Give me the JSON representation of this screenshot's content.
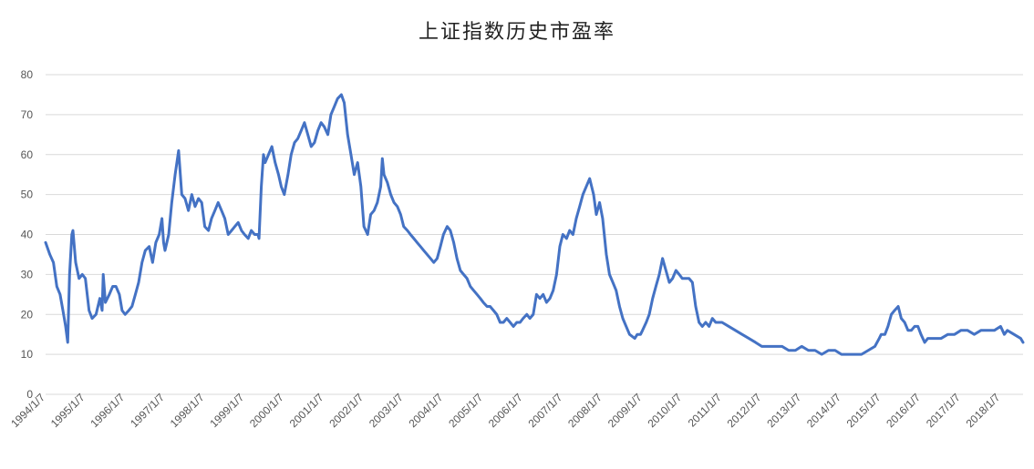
{
  "chart_data": {
    "type": "line",
    "title": "上证指数历史市盈率",
    "xlabel": "",
    "ylabel": "",
    "ylim": [
      0,
      80
    ],
    "yticks": [
      0,
      10,
      20,
      30,
      40,
      50,
      60,
      70,
      80
    ],
    "grid": true,
    "legend": "none",
    "xlim": [
      "1994/1/7",
      "2018/8/1"
    ],
    "x_tick_labels": [
      "1994/1/7",
      "1995/1/7",
      "1996/1/7",
      "1997/1/7",
      "1998/1/7",
      "1999/1/7",
      "2000/1/7",
      "2001/1/7",
      "2002/1/7",
      "2003/1/7",
      "2004/1/7",
      "2005/1/7",
      "2006/1/7",
      "2007/1/7",
      "2008/1/7",
      "2009/1/7",
      "2010/1/7",
      "2011/1/7",
      "2012/1/7",
      "2013/1/7",
      "2014/1/7",
      "2015/1/7",
      "2016/1/7",
      "2017/1/7",
      "2018/1/7"
    ],
    "series": [
      {
        "color": "#4472c4",
        "points": [
          [
            "1994/1/7",
            38
          ],
          [
            "1994/2/15",
            35
          ],
          [
            "1994/3/20",
            33
          ],
          [
            "1994/4/20",
            27
          ],
          [
            "1994/5/20",
            25
          ],
          [
            "1994/6/15",
            21
          ],
          [
            "1994/7/10",
            17
          ],
          [
            "1994/7/29",
            13
          ],
          [
            "1994/8/15",
            30
          ],
          [
            "1994/9/5",
            40
          ],
          [
            "1994/9/15",
            41
          ],
          [
            "1994/10/10",
            33
          ],
          [
            "1994/11/10",
            29
          ],
          [
            "1994/12/10",
            30
          ],
          [
            "1995/1/7",
            29
          ],
          [
            "1995/2/10",
            21
          ],
          [
            "1995/3/10",
            19
          ],
          [
            "1995/4/15",
            20
          ],
          [
            "1995/5/20",
            24
          ],
          [
            "1995/6/10",
            21
          ],
          [
            "1995/6/20",
            30
          ],
          [
            "1995/7/10",
            23
          ],
          [
            "1995/8/15",
            25
          ],
          [
            "1995/9/15",
            27
          ],
          [
            "1995/10/15",
            27
          ],
          [
            "1995/11/15",
            25
          ],
          [
            "1995/12/10",
            21
          ],
          [
            "1996/1/7",
            20
          ],
          [
            "1996/2/10",
            21
          ],
          [
            "1996/3/10",
            22
          ],
          [
            "1996/4/10",
            25
          ],
          [
            "1996/5/10",
            28
          ],
          [
            "1996/6/10",
            33
          ],
          [
            "1996/7/10",
            36
          ],
          [
            "1996/8/15",
            37
          ],
          [
            "1996/9/15",
            33
          ],
          [
            "1996/10/15",
            38
          ],
          [
            "1996/11/15",
            40
          ],
          [
            "1996/12/10",
            44
          ],
          [
            "1996/12/25",
            38
          ],
          [
            "1997/1/7",
            36
          ],
          [
            "1997/2/10",
            40
          ],
          [
            "1997/3/10",
            48
          ],
          [
            "1997/4/10",
            55
          ],
          [
            "1997/5/12",
            61
          ],
          [
            "1997/6/10",
            50
          ],
          [
            "1997/7/10",
            49
          ],
          [
            "1997/8/10",
            46
          ],
          [
            "1997/9/10",
            50
          ],
          [
            "1997/10/10",
            47
          ],
          [
            "1997/11/10",
            49
          ],
          [
            "1997/12/10",
            48
          ],
          [
            "1998/1/7",
            42
          ],
          [
            "1998/2/10",
            41
          ],
          [
            "1998/3/10",
            44
          ],
          [
            "1998/4/10",
            46
          ],
          [
            "1998/5/10",
            48
          ],
          [
            "1998/6/10",
            46
          ],
          [
            "1998/7/10",
            44
          ],
          [
            "1998/8/10",
            40
          ],
          [
            "1998/9/10",
            41
          ],
          [
            "1998/10/10",
            42
          ],
          [
            "1998/11/10",
            43
          ],
          [
            "1998/12/10",
            41
          ],
          [
            "1999/1/7",
            40
          ],
          [
            "1999/2/10",
            39
          ],
          [
            "1999/3/10",
            41
          ],
          [
            "1999/4/10",
            40
          ],
          [
            "1999/5/10",
            40
          ],
          [
            "1999/5/20",
            39
          ],
          [
            "1999/6/10",
            52
          ],
          [
            "1999/6/30",
            60
          ],
          [
            "1999/7/15",
            58
          ],
          [
            "1999/8/15",
            60
          ],
          [
            "1999/9/15",
            62
          ],
          [
            "1999/10/15",
            58
          ],
          [
            "1999/11/15",
            55
          ],
          [
            "1999/12/10",
            52
          ],
          [
            "2000/1/7",
            50
          ],
          [
            "2000/2/10",
            55
          ],
          [
            "2000/3/10",
            60
          ],
          [
            "2000/4/10",
            63
          ],
          [
            "2000/5/10",
            64
          ],
          [
            "2000/6/10",
            66
          ],
          [
            "2000/7/10",
            68
          ],
          [
            "2000/8/10",
            65
          ],
          [
            "2000/9/10",
            62
          ],
          [
            "2000/10/10",
            63
          ],
          [
            "2000/11/10",
            66
          ],
          [
            "2000/12/10",
            68
          ],
          [
            "2001/1/7",
            67
          ],
          [
            "2001/2/10",
            65
          ],
          [
            "2001/3/10",
            70
          ],
          [
            "2001/4/10",
            72
          ],
          [
            "2001/5/10",
            74
          ],
          [
            "2001/6/14",
            75
          ],
          [
            "2001/7/10",
            73
          ],
          [
            "2001/8/10",
            65
          ],
          [
            "2001/9/10",
            60
          ],
          [
            "2001/10/10",
            55
          ],
          [
            "2001/11/10",
            58
          ],
          [
            "2001/12/10",
            52
          ],
          [
            "2002/1/7",
            42
          ],
          [
            "2002/2/10",
            40
          ],
          [
            "2002/3/10",
            45
          ],
          [
            "2002/4/10",
            46
          ],
          [
            "2002/5/10",
            48
          ],
          [
            "2002/6/10",
            52
          ],
          [
            "2002/6/25",
            59
          ],
          [
            "2002/7/10",
            55
          ],
          [
            "2002/8/10",
            53
          ],
          [
            "2002/9/10",
            50
          ],
          [
            "2002/10/10",
            48
          ],
          [
            "2002/11/10",
            47
          ],
          [
            "2002/12/10",
            45
          ],
          [
            "2003/1/7",
            42
          ],
          [
            "2003/2/10",
            41
          ],
          [
            "2003/3/10",
            40
          ],
          [
            "2003/4/10",
            39
          ],
          [
            "2003/5/10",
            38
          ],
          [
            "2003/6/10",
            37
          ],
          [
            "2003/7/10",
            36
          ],
          [
            "2003/8/10",
            35
          ],
          [
            "2003/9/10",
            34
          ],
          [
            "2003/10/10",
            33
          ],
          [
            "2003/11/10",
            34
          ],
          [
            "2003/12/10",
            37
          ],
          [
            "2004/1/7",
            40
          ],
          [
            "2004/2/10",
            42
          ],
          [
            "2004/3/10",
            41
          ],
          [
            "2004/4/10",
            38
          ],
          [
            "2004/5/10",
            34
          ],
          [
            "2004/6/10",
            31
          ],
          [
            "2004/7/10",
            30
          ],
          [
            "2004/8/10",
            29
          ],
          [
            "2004/9/10",
            27
          ],
          [
            "2004/10/10",
            26
          ],
          [
            "2004/11/10",
            25
          ],
          [
            "2004/12/10",
            24
          ],
          [
            "2005/1/7",
            23
          ],
          [
            "2005/2/10",
            22
          ],
          [
            "2005/3/10",
            22
          ],
          [
            "2005/4/10",
            21
          ],
          [
            "2005/5/10",
            20
          ],
          [
            "2005/6/10",
            18
          ],
          [
            "2005/7/10",
            18
          ],
          [
            "2005/8/10",
            19
          ],
          [
            "2005/9/10",
            18
          ],
          [
            "2005/10/10",
            17
          ],
          [
            "2005/11/10",
            18
          ],
          [
            "2005/12/10",
            18
          ],
          [
            "2006/1/7",
            19
          ],
          [
            "2006/2/10",
            20
          ],
          [
            "2006/3/10",
            19
          ],
          [
            "2006/4/10",
            20
          ],
          [
            "2006/5/10",
            25
          ],
          [
            "2006/6/10",
            24
          ],
          [
            "2006/7/10",
            25
          ],
          [
            "2006/8/10",
            23
          ],
          [
            "2006/9/10",
            24
          ],
          [
            "2006/10/10",
            26
          ],
          [
            "2006/11/10",
            30
          ],
          [
            "2006/12/10",
            37
          ],
          [
            "2007/1/7",
            40
          ],
          [
            "2007/2/10",
            39
          ],
          [
            "2007/3/10",
            41
          ],
          [
            "2007/4/10",
            40
          ],
          [
            "2007/5/10",
            44
          ],
          [
            "2007/6/10",
            47
          ],
          [
            "2007/7/10",
            50
          ],
          [
            "2007/8/10",
            52
          ],
          [
            "2007/9/10",
            54
          ],
          [
            "2007/10/16",
            50
          ],
          [
            "2007/11/10",
            45
          ],
          [
            "2007/12/10",
            48
          ],
          [
            "2008/1/7",
            44
          ],
          [
            "2008/2/10",
            35
          ],
          [
            "2008/3/10",
            30
          ],
          [
            "2008/4/10",
            28
          ],
          [
            "2008/5/10",
            26
          ],
          [
            "2008/6/10",
            22
          ],
          [
            "2008/7/10",
            19
          ],
          [
            "2008/8/10",
            17
          ],
          [
            "2008/9/10",
            15
          ],
          [
            "2008/10/28",
            14
          ],
          [
            "2008/11/20",
            15
          ],
          [
            "2008/12/20",
            15
          ],
          [
            "2009/1/7",
            16
          ],
          [
            "2009/2/10",
            18
          ],
          [
            "2009/3/10",
            20
          ],
          [
            "2009/4/10",
            24
          ],
          [
            "2009/5/10",
            27
          ],
          [
            "2009/6/10",
            30
          ],
          [
            "2009/7/10",
            34
          ],
          [
            "2009/8/10",
            31
          ],
          [
            "2009/9/10",
            28
          ],
          [
            "2009/10/10",
            29
          ],
          [
            "2009/11/10",
            31
          ],
          [
            "2009/12/10",
            30
          ],
          [
            "2010/1/7",
            29
          ],
          [
            "2010/2/10",
            29
          ],
          [
            "2010/3/10",
            29
          ],
          [
            "2010/4/10",
            28
          ],
          [
            "2010/5/10",
            22
          ],
          [
            "2010/6/10",
            18
          ],
          [
            "2010/7/10",
            17
          ],
          [
            "2010/8/10",
            18
          ],
          [
            "2010/9/10",
            17
          ],
          [
            "2010/10/10",
            19
          ],
          [
            "2010/11/10",
            18
          ],
          [
            "2010/12/10",
            18
          ],
          [
            "2011/1/7",
            18
          ],
          [
            "2011/3/10",
            17
          ],
          [
            "2011/5/10",
            16
          ],
          [
            "2011/7/10",
            15
          ],
          [
            "2011/9/10",
            14
          ],
          [
            "2011/11/10",
            13
          ],
          [
            "2012/1/7",
            12
          ],
          [
            "2012/3/10",
            12
          ],
          [
            "2012/5/10",
            12
          ],
          [
            "2012/7/10",
            12
          ],
          [
            "2012/9/10",
            11
          ],
          [
            "2012/11/10",
            11
          ],
          [
            "2013/1/7",
            12
          ],
          [
            "2013/3/10",
            11
          ],
          [
            "2013/5/10",
            11
          ],
          [
            "2013/7/10",
            10
          ],
          [
            "2013/9/10",
            11
          ],
          [
            "2013/11/10",
            11
          ],
          [
            "2014/1/7",
            10
          ],
          [
            "2014/3/10",
            10
          ],
          [
            "2014/5/10",
            10
          ],
          [
            "2014/7/10",
            10
          ],
          [
            "2014/9/10",
            11
          ],
          [
            "2014/11/10",
            12
          ],
          [
            "2014/12/20",
            14
          ],
          [
            "2015/1/7",
            15
          ],
          [
            "2015/2/10",
            15
          ],
          [
            "2015/3/10",
            17
          ],
          [
            "2015/4/10",
            20
          ],
          [
            "2015/5/10",
            21
          ],
          [
            "2015/6/12",
            22
          ],
          [
            "2015/7/10",
            19
          ],
          [
            "2015/8/10",
            18
          ],
          [
            "2015/9/10",
            16
          ],
          [
            "2015/10/10",
            16
          ],
          [
            "2015/11/10",
            17
          ],
          [
            "2015/12/10",
            17
          ],
          [
            "2016/1/7",
            15
          ],
          [
            "2016/2/10",
            13
          ],
          [
            "2016/3/10",
            14
          ],
          [
            "2016/5/10",
            14
          ],
          [
            "2016/7/10",
            14
          ],
          [
            "2016/9/10",
            15
          ],
          [
            "2016/11/10",
            15
          ],
          [
            "2017/1/7",
            16
          ],
          [
            "2017/3/10",
            16
          ],
          [
            "2017/5/10",
            15
          ],
          [
            "2017/7/10",
            16
          ],
          [
            "2017/9/10",
            16
          ],
          [
            "2017/11/10",
            16
          ],
          [
            "2018/1/7",
            17
          ],
          [
            "2018/2/10",
            15
          ],
          [
            "2018/3/10",
            16
          ],
          [
            "2018/5/10",
            15
          ],
          [
            "2018/7/10",
            14
          ],
          [
            "2018/8/1",
            13
          ]
        ]
      }
    ]
  }
}
